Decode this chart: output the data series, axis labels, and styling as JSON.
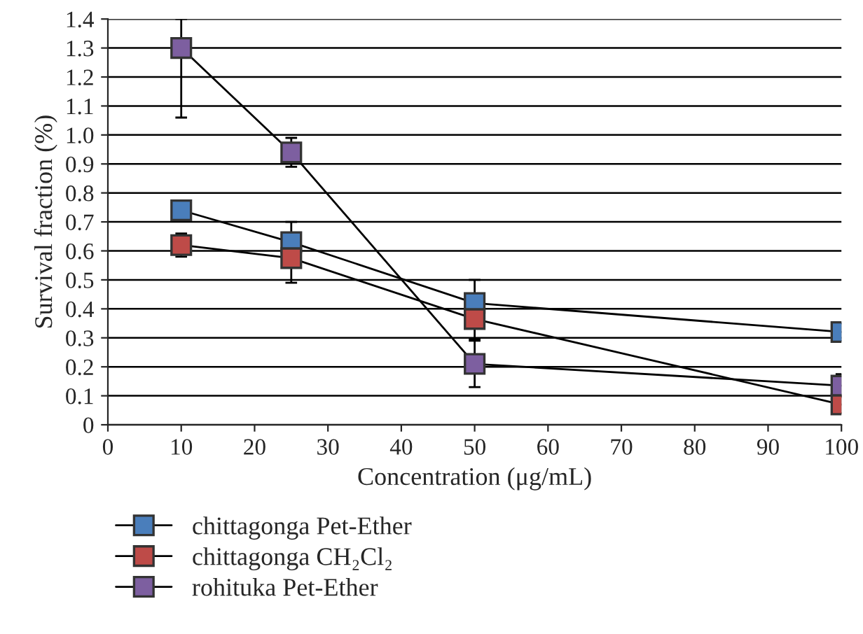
{
  "chart_data": {
    "type": "line",
    "xlabel": "Concentration (μg/mL)",
    "ylabel": "Survival fraction (%)",
    "x": [
      10,
      25,
      50,
      100
    ],
    "series": [
      {
        "name": "chittagonga Pet-Ether",
        "color": "#4a7ebb",
        "values": [
          0.74,
          0.63,
          0.42,
          0.32
        ],
        "errors": [
          0.03,
          0.07,
          0.08,
          0.03
        ]
      },
      {
        "name": "chittagonga CH₂Cl₂",
        "color": "#be4b48",
        "values": [
          0.62,
          0.575,
          0.365,
          0.07
        ],
        "errors": [
          0.04,
          0.085,
          0.07,
          0.03
        ]
      },
      {
        "name": "rohituka Pet-Ether",
        "color": "#7d5fa0",
        "values": [
          1.3,
          0.94,
          0.21,
          0.135
        ],
        "errors": [
          [
            1.06,
            1.4
          ],
          0.05,
          0.08,
          0.04
        ]
      }
    ],
    "xlim": [
      0,
      100
    ],
    "xticks": [
      0,
      10,
      20,
      30,
      40,
      50,
      60,
      70,
      80,
      90,
      100
    ],
    "ylim": [
      0,
      1.4
    ],
    "yticks": [
      0,
      0.1,
      0.2,
      0.3,
      0.4,
      0.5,
      0.6,
      0.7,
      0.8,
      0.9,
      {
        "value": 1.0,
        "label": "1.0"
      },
      1.1,
      1.2,
      1.3,
      1.4
    ],
    "grid": "y",
    "legend": "bottom",
    "marker": "square",
    "line_style": "solid"
  }
}
